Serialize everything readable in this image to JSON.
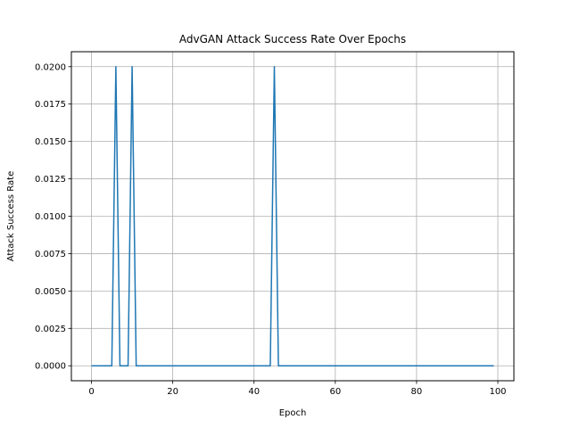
{
  "chart_data": {
    "type": "line",
    "title": "AdvGAN Attack Success Rate Over Epochs",
    "xlabel": "Epoch",
    "ylabel": "Attack Success Rate",
    "xlim": [
      -4.95,
      103.95
    ],
    "ylim": [
      -0.001,
      0.021
    ],
    "xticks": [
      0,
      20,
      40,
      60,
      80,
      100
    ],
    "xtick_labels": [
      "0",
      "20",
      "40",
      "60",
      "80",
      "100"
    ],
    "yticks": [
      0.0,
      0.0025,
      0.005,
      0.0075,
      0.01,
      0.0125,
      0.015,
      0.0175,
      0.02
    ],
    "ytick_labels": [
      "0.0000",
      "0.0025",
      "0.0050",
      "0.0075",
      "0.0100",
      "0.0125",
      "0.0150",
      "0.0175",
      "0.0200"
    ],
    "grid": true,
    "line_color": "#1f77b4",
    "series": [
      {
        "x_start": 0,
        "x_end": 99,
        "values": [
          0,
          0,
          0,
          0,
          0,
          0,
          0.02,
          0,
          0,
          0,
          0.02,
          0,
          0,
          0,
          0,
          0,
          0,
          0,
          0,
          0,
          0,
          0,
          0,
          0,
          0,
          0,
          0,
          0,
          0,
          0,
          0,
          0,
          0,
          0,
          0,
          0,
          0,
          0,
          0,
          0,
          0,
          0,
          0,
          0,
          0,
          0.02,
          0,
          0,
          0,
          0,
          0,
          0,
          0,
          0,
          0,
          0,
          0,
          0,
          0,
          0,
          0,
          0,
          0,
          0,
          0,
          0,
          0,
          0,
          0,
          0,
          0,
          0,
          0,
          0,
          0,
          0,
          0,
          0,
          0,
          0,
          0,
          0,
          0,
          0,
          0,
          0,
          0,
          0,
          0,
          0,
          0,
          0,
          0,
          0,
          0,
          0,
          0,
          0,
          0,
          0
        ]
      }
    ]
  }
}
